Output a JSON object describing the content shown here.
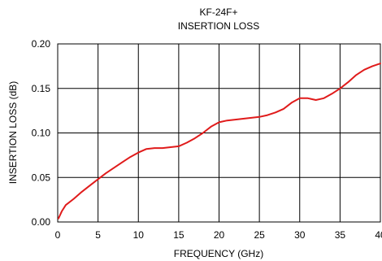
{
  "chart_data": {
    "type": "line",
    "title": "KF-24F+",
    "subtitle": "INSERTION LOSS",
    "xlabel": "FREQUENCY (GHz)",
    "ylabel": "INSERTION LOSS (dB)",
    "xlim": [
      0,
      40
    ],
    "ylim": [
      0,
      0.2
    ],
    "xticks": [
      0,
      5,
      10,
      15,
      20,
      25,
      30,
      35,
      40
    ],
    "yticks": [
      0,
      0.05,
      0.1,
      0.15,
      0.2
    ],
    "xtick_labels": [
      "0",
      "5",
      "10",
      "15",
      "20",
      "25",
      "30",
      "35",
      "40"
    ],
    "ytick_labels": [
      "0.00",
      "0.05",
      "0.10",
      "0.15",
      "0.20"
    ],
    "grid": true,
    "legend": "none",
    "series": [
      {
        "color": "#e01b1b",
        "x": [
          0.1,
          0.5,
          1,
          2,
          3,
          4,
          5,
          6,
          7,
          8,
          9,
          10,
          11,
          12,
          13,
          14,
          15,
          16,
          17,
          18,
          19,
          20,
          21,
          22,
          23,
          24,
          25,
          26,
          27,
          28,
          29,
          30,
          31,
          32,
          33,
          34,
          35,
          36,
          37,
          38,
          39,
          40
        ],
        "y": [
          0.004,
          0.012,
          0.019,
          0.026,
          0.034,
          0.041,
          0.048,
          0.055,
          0.061,
          0.067,
          0.073,
          0.078,
          0.082,
          0.083,
          0.083,
          0.084,
          0.085,
          0.089,
          0.094,
          0.1,
          0.107,
          0.112,
          0.114,
          0.115,
          0.116,
          0.117,
          0.118,
          0.12,
          0.123,
          0.127,
          0.134,
          0.139,
          0.139,
          0.137,
          0.139,
          0.144,
          0.15,
          0.157,
          0.165,
          0.171,
          0.175,
          0.178
        ]
      }
    ]
  }
}
